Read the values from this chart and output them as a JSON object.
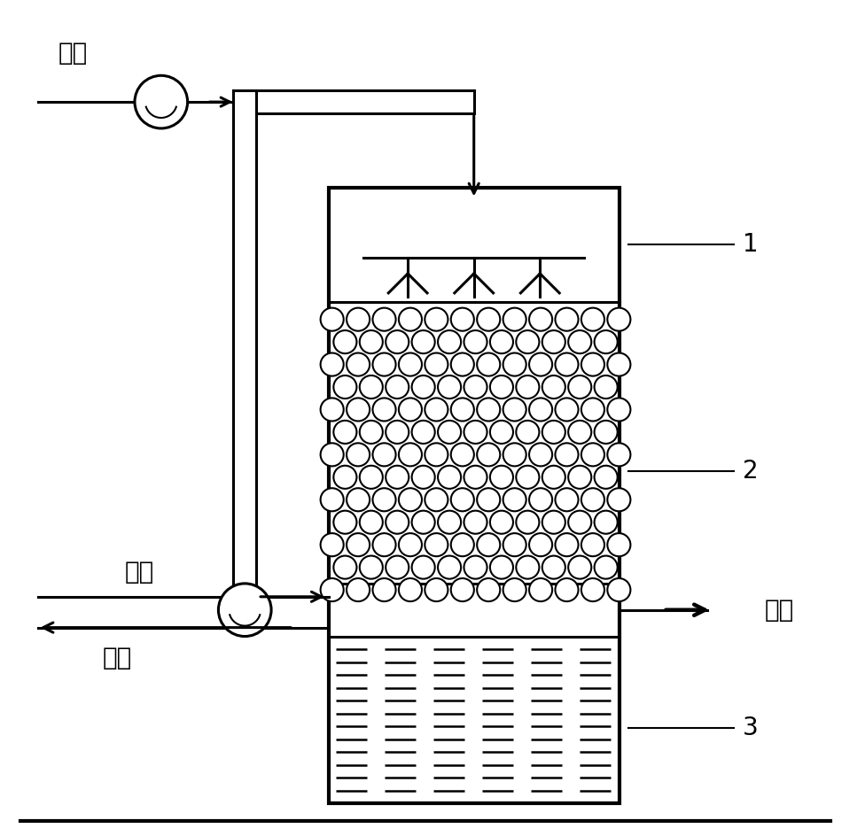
{
  "bg_color": "#ffffff",
  "line_color": "#000000",
  "text_jingqi": "进气",
  "text_chuqi": "出气",
  "text_jinshui": "进水",
  "text_chushui": "出水",
  "label_1": "1",
  "label_2": "2",
  "label_3": "3",
  "fontsize_chinese": 20,
  "fontsize_label": 20
}
